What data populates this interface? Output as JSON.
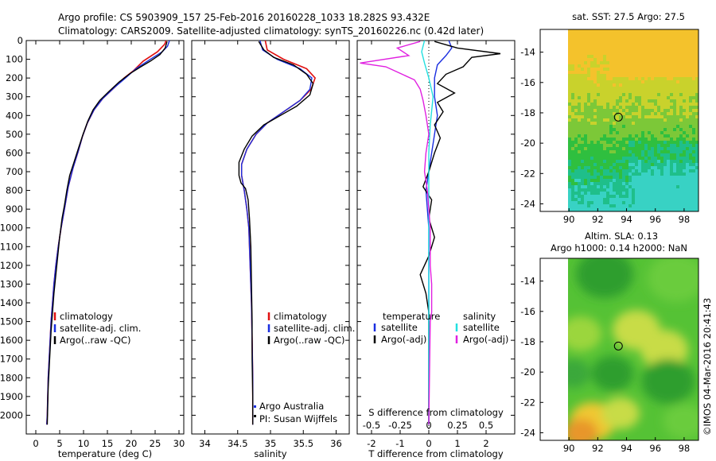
{
  "header": {
    "line1": "Argo profile: CS 5903909_157 25-Feb-2016 20160228_1033 18.282S 93.432E",
    "line2": "Climatology: CARS2009. Satellite-adjusted climatology: synTS_20160226.nc (0.42d later)"
  },
  "credits": {
    "argo": "Argo Australia",
    "pi": "PI: Susan Wijffels",
    "imos": "©IMOS 04-Mar-2016 20:41:43"
  },
  "colors": {
    "climatology": "#e01010",
    "satellite": "#1a2ee0",
    "argo": "#000000",
    "sat_salinity": "#22e0e0",
    "argo_salinity": "#e020e0"
  },
  "chart_data": [
    {
      "type": "line",
      "xlabel": "temperature (deg C)",
      "ylim": [
        2100,
        0
      ],
      "xlim": [
        -2,
        31
      ],
      "xticks": [
        0,
        5,
        10,
        15,
        20,
        25,
        30
      ],
      "yticks": [
        0,
        100,
        200,
        300,
        400,
        500,
        600,
        700,
        800,
        900,
        1000,
        1100,
        1200,
        1300,
        1400,
        1500,
        1600,
        1700,
        1800,
        1900,
        2000
      ],
      "legend": [
        "climatology",
        "satellite-adj. clim.",
        "Argo(..raw -QC)"
      ],
      "series": [
        {
          "name": "climatology",
          "color": "#e01010",
          "points": [
            [
              27.3,
              0
            ],
            [
              27.0,
              20
            ],
            [
              25.5,
              60
            ],
            [
              22.5,
              110
            ],
            [
              20.5,
              160
            ],
            [
              18.5,
              200
            ],
            [
              16.5,
              250
            ],
            [
              14.0,
              310
            ],
            [
              12.2,
              370
            ],
            [
              10.8,
              440
            ],
            [
              9.8,
              510
            ],
            [
              8.9,
              590
            ],
            [
              7.8,
              680
            ],
            [
              6.8,
              780
            ],
            [
              6.0,
              900
            ],
            [
              5.3,
              1000
            ],
            [
              4.7,
              1100
            ],
            [
              4.2,
              1200
            ],
            [
              3.8,
              1300
            ],
            [
              3.5,
              1400
            ],
            [
              3.2,
              1500
            ],
            [
              3.0,
              1600
            ],
            [
              2.8,
              1700
            ],
            [
              2.6,
              1800
            ],
            [
              2.5,
              1900
            ],
            [
              2.4,
              2000
            ],
            [
              2.3,
              2050
            ]
          ]
        },
        {
          "name": "satellite-adj. clim.",
          "color": "#1a2ee0",
          "points": [
            [
              28.0,
              0
            ],
            [
              27.6,
              30
            ],
            [
              26.5,
              60
            ],
            [
              24.0,
              100
            ],
            [
              21.0,
              150
            ],
            [
              18.8,
              200
            ],
            [
              16.5,
              250
            ],
            [
              14.0,
              310
            ],
            [
              12.2,
              370
            ],
            [
              10.8,
              440
            ],
            [
              9.8,
              510
            ],
            [
              8.9,
              590
            ],
            [
              7.8,
              680
            ],
            [
              6.8,
              780
            ],
            [
              6.0,
              900
            ],
            [
              5.3,
              1000
            ],
            [
              4.7,
              1100
            ],
            [
              4.2,
              1200
            ],
            [
              3.8,
              1300
            ],
            [
              3.5,
              1400
            ],
            [
              3.2,
              1500
            ],
            [
              3.0,
              1600
            ],
            [
              2.8,
              1700
            ],
            [
              2.6,
              1800
            ],
            [
              2.5,
              1900
            ],
            [
              2.4,
              2000
            ],
            [
              2.3,
              2050
            ]
          ]
        },
        {
          "name": "Argo(..raw -QC)",
          "color": "#000000",
          "points": [
            [
              27.5,
              5
            ],
            [
              27.1,
              40
            ],
            [
              26.0,
              75
            ],
            [
              24.0,
              110
            ],
            [
              22.0,
              140
            ],
            [
              19.8,
              175
            ],
            [
              17.5,
              220
            ],
            [
              15.4,
              270
            ],
            [
              13.4,
              320
            ],
            [
              12.0,
              370
            ],
            [
              10.9,
              430
            ],
            [
              9.9,
              500
            ],
            [
              9.0,
              570
            ],
            [
              8.0,
              650
            ],
            [
              7.1,
              720
            ],
            [
              6.5,
              800
            ],
            [
              6.0,
              880
            ],
            [
              5.5,
              950
            ],
            [
              5.0,
              1050
            ],
            [
              4.6,
              1150
            ],
            [
              4.2,
              1250
            ],
            [
              3.8,
              1350
            ],
            [
              3.5,
              1450
            ],
            [
              3.2,
              1550
            ],
            [
              3.0,
              1650
            ],
            [
              2.8,
              1750
            ],
            [
              2.6,
              1850
            ],
            [
              2.5,
              1950
            ],
            [
              2.4,
              2050
            ]
          ]
        }
      ]
    },
    {
      "type": "line",
      "xlabel": "salinity",
      "ylim": [
        2100,
        0
      ],
      "xlim": [
        33.8,
        36.2
      ],
      "xticks": [
        34,
        34.5,
        35,
        35.5,
        36
      ],
      "legend": [
        "climatology",
        "satellite-adj. clim.",
        "Argo(..raw -QC)"
      ],
      "series": [
        {
          "name": "climatology",
          "color": "#e01010",
          "points": [
            [
              34.92,
              0
            ],
            [
              34.95,
              50
            ],
            [
              35.2,
              100
            ],
            [
              35.55,
              150
            ],
            [
              35.68,
              200
            ],
            [
              35.62,
              260
            ],
            [
              35.45,
              320
            ],
            [
              35.2,
              380
            ],
            [
              34.95,
              440
            ],
            [
              34.78,
              500
            ],
            [
              34.64,
              580
            ],
            [
              34.56,
              660
            ],
            [
              34.56,
              720
            ],
            [
              34.6,
              800
            ],
            [
              34.64,
              900
            ],
            [
              34.67,
              1000
            ],
            [
              34.69,
              1200
            ],
            [
              34.71,
              1400
            ],
            [
              34.72,
              1600
            ],
            [
              34.73,
              1800
            ],
            [
              34.73,
              2050
            ]
          ]
        },
        {
          "name": "satellite-adj. clim.",
          "color": "#1a2ee0",
          "points": [
            [
              34.84,
              0
            ],
            [
              34.88,
              50
            ],
            [
              35.1,
              100
            ],
            [
              35.45,
              150
            ],
            [
              35.63,
              200
            ],
            [
              35.6,
              260
            ],
            [
              35.45,
              320
            ],
            [
              35.2,
              380
            ],
            [
              34.95,
              440
            ],
            [
              34.78,
              500
            ],
            [
              34.64,
              580
            ],
            [
              34.56,
              660
            ],
            [
              34.56,
              720
            ],
            [
              34.6,
              800
            ],
            [
              34.64,
              900
            ],
            [
              34.67,
              1000
            ],
            [
              34.69,
              1200
            ],
            [
              34.71,
              1400
            ],
            [
              34.72,
              1600
            ],
            [
              34.73,
              1800
            ],
            [
              34.73,
              2050
            ]
          ]
        },
        {
          "name": "Argo(..raw -QC)",
          "color": "#000000",
          "points": [
            [
              34.82,
              5
            ],
            [
              34.9,
              50
            ],
            [
              35.05,
              90
            ],
            [
              35.35,
              130
            ],
            [
              35.55,
              180
            ],
            [
              35.65,
              230
            ],
            [
              35.6,
              290
            ],
            [
              35.4,
              350
            ],
            [
              35.15,
              400
            ],
            [
              34.9,
              450
            ],
            [
              34.72,
              510
            ],
            [
              34.6,
              580
            ],
            [
              34.52,
              650
            ],
            [
              34.52,
              720
            ],
            [
              34.55,
              760
            ],
            [
              34.62,
              790
            ],
            [
              34.66,
              850
            ],
            [
              34.68,
              950
            ],
            [
              34.7,
              1100
            ],
            [
              34.71,
              1300
            ],
            [
              34.72,
              1500
            ],
            [
              34.72,
              1700
            ],
            [
              34.73,
              1900
            ],
            [
              34.73,
              2050
            ]
          ]
        }
      ]
    },
    {
      "type": "line",
      "xlabel": "T difference from climatology",
      "x2label": "S difference from climatology",
      "ylim": [
        2100,
        0
      ],
      "xlim": [
        -2.5,
        3.0
      ],
      "xticks": [
        -2,
        -1,
        0,
        1,
        2
      ],
      "x2ticks": [
        "-0.5",
        "-0.25",
        "0",
        "0.25",
        "0.5"
      ],
      "legend_groups": [
        {
          "title": "temperature",
          "items": [
            "satellite",
            "Argo(-adj)"
          ]
        },
        {
          "title": "salinity",
          "items": [
            "satellite",
            "Argo(-adj)"
          ]
        }
      ],
      "series": [
        {
          "name": "temperature satellite",
          "color": "#1a2ee0",
          "points": [
            [
              0.7,
              0
            ],
            [
              0.8,
              40
            ],
            [
              0.6,
              80
            ],
            [
              0.3,
              130
            ],
            [
              0.2,
              200
            ],
            [
              0.2,
              300
            ],
            [
              0.3,
              400
            ],
            [
              0.2,
              500
            ],
            [
              0.1,
              600
            ],
            [
              0.0,
              700
            ],
            [
              -0.1,
              800
            ],
            [
              0.0,
              1000
            ],
            [
              0.0,
              1500
            ],
            [
              0.0,
              2050
            ]
          ]
        },
        {
          "name": "temperature Argo(-adj)",
          "color": "#000000",
          "points": [
            [
              0.2,
              5
            ],
            [
              1.0,
              40
            ],
            [
              2.5,
              70
            ],
            [
              1.5,
              90
            ],
            [
              1.2,
              140
            ],
            [
              0.6,
              180
            ],
            [
              0.3,
              230
            ],
            [
              0.9,
              280
            ],
            [
              0.3,
              330
            ],
            [
              0.5,
              380
            ],
            [
              0.2,
              450
            ],
            [
              0.4,
              520
            ],
            [
              0.2,
              600
            ],
            [
              0.0,
              700
            ],
            [
              -0.2,
              780
            ],
            [
              0.1,
              850
            ],
            [
              0.0,
              950
            ],
            [
              0.2,
              1050
            ],
            [
              0.0,
              1150
            ],
            [
              -0.3,
              1250
            ],
            [
              -0.1,
              1350
            ],
            [
              0.0,
              1450
            ],
            [
              0.0,
              2050
            ]
          ]
        },
        {
          "name": "salinity satellite",
          "color": "#22e0e0",
          "points": [
            [
              -0.15,
              0
            ],
            [
              -0.25,
              60
            ],
            [
              -0.15,
              120
            ],
            [
              0.0,
              200
            ],
            [
              0.15,
              300
            ],
            [
              0.05,
              450
            ],
            [
              0.0,
              600
            ],
            [
              0.0,
              800
            ],
            [
              0.0,
              1200
            ],
            [
              0.0,
              2050
            ]
          ]
        },
        {
          "name": "salinity Argo(-adj)",
          "color": "#e020e0",
          "points": [
            [
              -0.3,
              5
            ],
            [
              -1.1,
              40
            ],
            [
              -0.7,
              80
            ],
            [
              -2.4,
              120
            ],
            [
              -1.5,
              140
            ],
            [
              -1.0,
              175
            ],
            [
              -0.5,
              210
            ],
            [
              -0.3,
              260
            ],
            [
              -0.2,
              320
            ],
            [
              -0.1,
              400
            ],
            [
              0.0,
              500
            ],
            [
              -0.1,
              600
            ],
            [
              -0.15,
              700
            ],
            [
              -0.05,
              800
            ],
            [
              0.0,
              900
            ],
            [
              0.05,
              1000
            ],
            [
              0.05,
              1100
            ],
            [
              0.05,
              1200
            ],
            [
              0.1,
              1300
            ],
            [
              0.1,
              1400
            ],
            [
              0.1,
              1450
            ],
            [
              0.05,
              1500
            ],
            [
              0.0,
              2050
            ]
          ]
        }
      ]
    },
    {
      "type": "heatmap",
      "title": "sat. SST: 27.5 Argo: 27.5",
      "xlim": [
        88,
        99
      ],
      "ylim": [
        -24.5,
        -12.5
      ],
      "xticks": [
        90,
        92,
        94,
        96,
        98
      ],
      "yticks": [
        -14,
        -16,
        -18,
        -20,
        -22,
        -24
      ],
      "marker": {
        "lon": 93.432,
        "lat": -18.282
      }
    },
    {
      "type": "heatmap",
      "title": "Altim. SLA: 0.13",
      "subtitle": "Argo h1000: 0.14 h2000: NaN",
      "xlim": [
        88,
        99
      ],
      "ylim": [
        -24.5,
        -12.5
      ],
      "xticks": [
        90,
        92,
        94,
        96,
        98
      ],
      "yticks": [
        -14,
        -16,
        -18,
        -20,
        -22,
        -24
      ],
      "marker": {
        "lon": 93.432,
        "lat": -18.282
      }
    }
  ]
}
